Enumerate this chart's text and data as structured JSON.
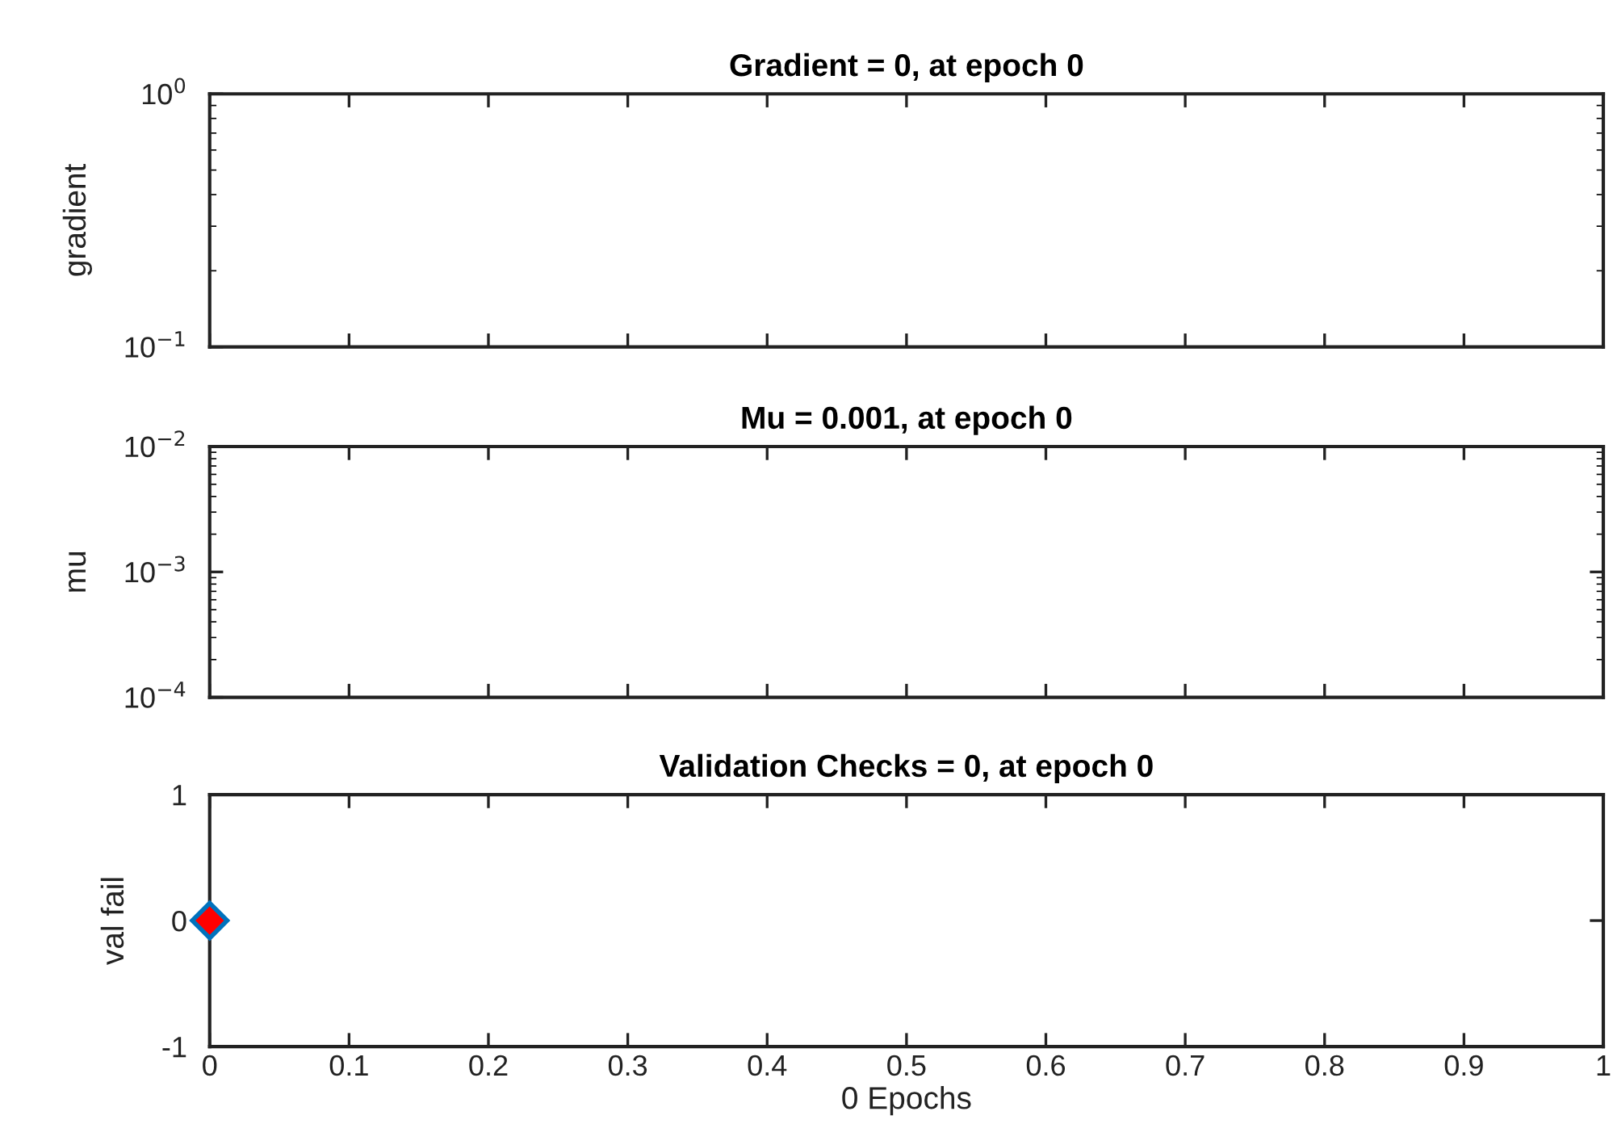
{
  "chart_data": [
    {
      "type": "line",
      "title": "Gradient = 0, at epoch 0",
      "ylabel": "gradient",
      "log": "y",
      "xlim": [
        0,
        1
      ],
      "xticks": [
        0,
        0.1,
        0.2,
        0.3,
        0.4,
        0.5,
        0.6,
        0.7,
        0.8,
        0.9,
        1
      ],
      "ylim": [
        0.1,
        1
      ],
      "yticks": [
        {
          "value": 0.1,
          "label": "10$^{−1}$"
        },
        {
          "value": 1,
          "label": "10$^{0}$"
        }
      ],
      "tick_labels": "y",
      "grid": false
    },
    {
      "type": "line",
      "title": "Mu = 0.001, at epoch 0",
      "ylabel": "mu",
      "log": "y",
      "xlim": [
        0,
        1
      ],
      "xticks": [
        0,
        0.1,
        0.2,
        0.3,
        0.4,
        0.5,
        0.6,
        0.7,
        0.8,
        0.9,
        1
      ],
      "ylim": [
        0.0001,
        0.01
      ],
      "yticks": [
        {
          "value": 0.0001,
          "label": "10$^{−4}$"
        },
        {
          "value": 0.001,
          "label": "10$^{−3}$"
        },
        {
          "value": 0.01,
          "label": "10$^{−2}$"
        }
      ],
      "tick_labels": "y",
      "grid": false
    },
    {
      "type": "scatter",
      "title": "Validation Checks = 0, at epoch 0",
      "ylabel": "val fail",
      "xlabel": "0 Epochs",
      "xlim": [
        0,
        1
      ],
      "xticks": [
        0,
        0.1,
        0.2,
        0.3,
        0.4,
        0.5,
        0.6,
        0.7,
        0.8,
        0.9,
        1
      ],
      "ylim": [
        -1,
        1
      ],
      "yticks": [
        -1,
        0,
        1
      ],
      "grid": false,
      "marker": "diamond",
      "series": [
        {
          "color": "#ff0000",
          "x": [
            0
          ],
          "values": [
            0
          ]
        }
      ]
    }
  ]
}
